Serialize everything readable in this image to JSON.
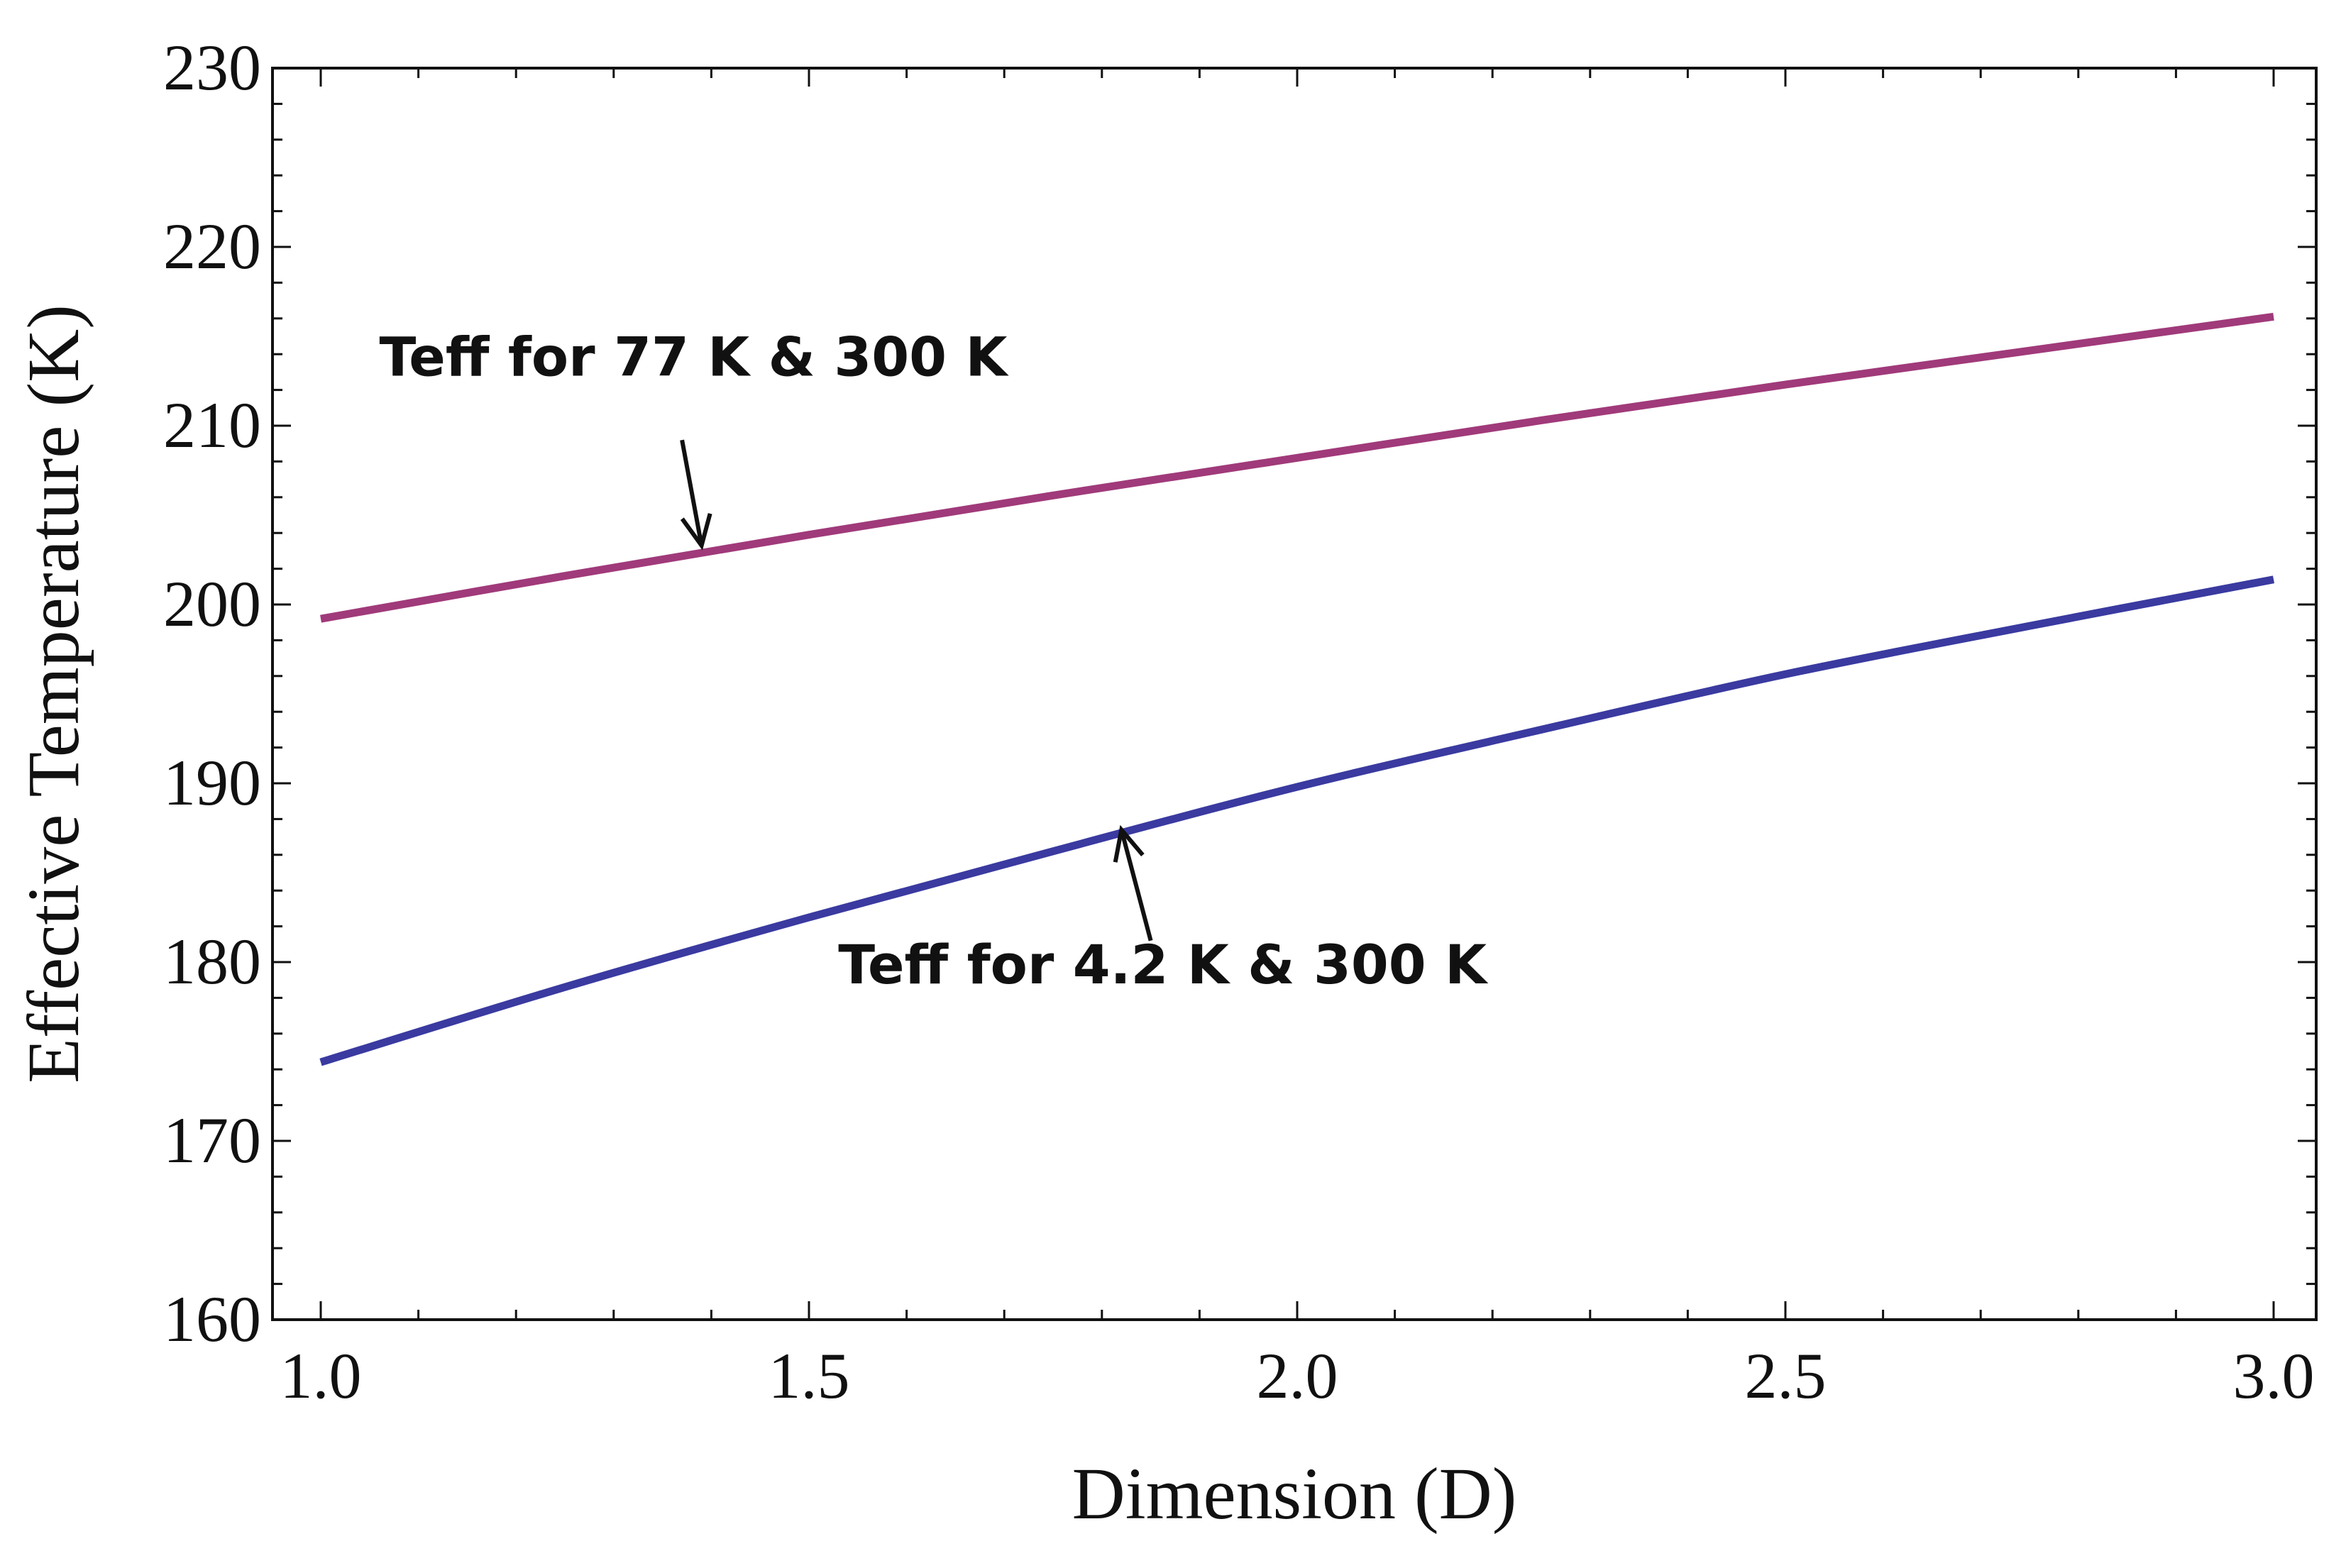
{
  "chart_data": {
    "type": "line",
    "title": "",
    "xlabel": "Dimension (D)",
    "ylabel": "Effective  Temperature (K)",
    "xlim": [
      1.0,
      3.0
    ],
    "ylim": [
      160,
      230
    ],
    "grid": false,
    "x_ticks": [
      {
        "value": 1.0,
        "label": "1.0"
      },
      {
        "value": 1.5,
        "label": "1.5"
      },
      {
        "value": 2.0,
        "label": "2.0"
      },
      {
        "value": 2.5,
        "label": "2.5"
      },
      {
        "value": 3.0,
        "label": "3.0"
      }
    ],
    "y_ticks": [
      {
        "value": 160,
        "label": "160"
      },
      {
        "value": 170,
        "label": "170"
      },
      {
        "value": 180,
        "label": "180"
      },
      {
        "value": 190,
        "label": "190"
      },
      {
        "value": 200,
        "label": "200"
      },
      {
        "value": 210,
        "label": "210"
      },
      {
        "value": 220,
        "label": "220"
      },
      {
        "value": 230,
        "label": "230"
      }
    ],
    "series": [
      {
        "name": "Teff for 77 K & 300 K",
        "color": "#A03A7A",
        "x": [
          1.0,
          1.25,
          1.5,
          1.75,
          2.0,
          2.25,
          2.5,
          2.75,
          3.0
        ],
        "y": [
          199.2,
          201.6,
          203.9,
          206.1,
          208.2,
          210.3,
          212.3,
          214.2,
          216.1
        ]
      },
      {
        "name": "Teff for 4.2 K & 300 K",
        "color": "#3A3AA0",
        "x": [
          1.0,
          1.25,
          1.5,
          1.75,
          2.0,
          2.25,
          2.5,
          2.75,
          3.0
        ],
        "y": [
          174.4,
          178.6,
          182.5,
          186.2,
          189.8,
          193.0,
          196.1,
          198.8,
          201.4
        ]
      }
    ],
    "annotations": [
      {
        "text": "Teff for 77 K & 300 K",
        "series": 0,
        "points_to_x": 1.39,
        "points_to_y": 203.3,
        "label_x": 1.06,
        "label_y": 212.8,
        "arrow_from_x": 1.37,
        "arrow_from_y": 209.2
      },
      {
        "text": "Teff for 4.2 K & 300 K",
        "series": 1,
        "points_to_x": 1.82,
        "points_to_y": 187.4,
        "label_x": 1.53,
        "label_y": 178.8,
        "arrow_from_x": 1.85,
        "arrow_from_y": 181.2
      }
    ]
  }
}
